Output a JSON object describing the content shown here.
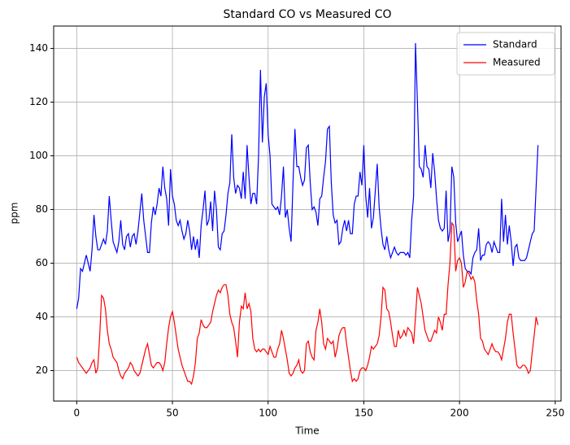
{
  "chart_data": {
    "type": "line",
    "title": "Standard CO vs Measured CO",
    "x_label": "Time",
    "y_label": "ppm",
    "x": [
      0,
      1,
      2,
      3,
      4,
      5,
      6,
      7,
      8,
      9,
      10,
      11,
      12,
      13,
      14,
      15,
      16,
      17,
      18,
      19,
      20,
      21,
      22,
      23,
      24,
      25,
      26,
      27,
      28,
      29,
      30,
      31,
      32,
      33,
      34,
      35,
      36,
      37,
      38,
      39,
      40,
      41,
      42,
      43,
      44,
      45,
      46,
      47,
      48,
      49,
      50,
      51,
      52,
      53,
      54,
      55,
      56,
      57,
      58,
      59,
      60,
      61,
      62,
      63,
      64,
      65,
      66,
      67,
      68,
      69,
      70,
      71,
      72,
      73,
      74,
      75,
      76,
      77,
      78,
      79,
      80,
      81,
      82,
      83,
      84,
      85,
      86,
      87,
      88,
      89,
      90,
      91,
      92,
      93,
      94,
      95,
      96,
      97,
      98,
      99,
      100,
      101,
      102,
      103,
      104,
      105,
      106,
      107,
      108,
      109,
      110,
      111,
      112,
      113,
      114,
      115,
      116,
      117,
      118,
      119,
      120,
      121,
      122,
      123,
      124,
      125,
      126,
      127,
      128,
      129,
      130,
      131,
      132,
      133,
      134,
      135,
      136,
      137,
      138,
      139,
      140,
      141,
      142,
      143,
      144,
      145,
      146,
      147,
      148,
      149,
      150,
      151,
      152,
      153,
      154,
      155,
      156,
      157,
      158,
      159,
      160,
      161,
      162,
      163,
      164,
      165,
      166,
      167,
      168,
      169,
      170,
      171,
      172,
      173,
      174,
      175,
      176,
      177,
      178,
      179,
      180,
      181,
      182,
      183,
      184,
      185,
      186,
      187,
      188,
      189,
      190,
      191,
      192,
      193,
      194,
      195,
      196,
      197,
      198,
      199,
      200,
      201,
      202,
      203,
      204,
      205,
      206,
      207,
      208,
      209,
      210,
      211,
      212,
      213,
      214,
      215,
      216,
      217,
      218,
      219,
      220,
      221,
      222,
      223,
      224,
      225,
      226,
      227,
      228,
      229,
      230,
      231,
      232,
      233,
      234,
      235,
      236,
      237,
      238,
      239,
      240,
      241
    ],
    "series": [
      {
        "name": "Standard",
        "color": "#0000ff",
        "values": [
          43,
          47,
          58,
          57,
          60,
          63,
          60,
          57,
          65,
          78,
          70,
          65,
          65,
          67,
          69,
          67,
          72,
          85,
          76,
          68,
          66,
          64,
          68,
          76,
          67,
          65,
          70,
          71,
          66,
          70,
          71,
          67,
          72,
          79,
          86,
          76,
          70,
          64,
          64,
          75,
          81,
          78,
          82,
          88,
          85,
          96,
          88,
          84,
          74,
          95,
          85,
          82,
          76,
          74,
          76,
          72,
          69,
          71,
          76,
          72,
          65,
          70,
          65,
          69,
          62,
          74,
          80,
          87,
          74,
          76,
          83,
          72,
          87,
          80,
          66,
          65,
          71,
          72,
          78,
          86,
          90,
          108,
          92,
          86,
          89,
          88,
          84,
          94,
          84,
          104,
          92,
          82,
          86,
          86,
          82,
          100,
          132,
          105,
          122,
          127,
          108,
          100,
          82,
          81,
          80,
          81,
          78,
          85,
          96,
          77,
          80,
          73,
          68,
          90,
          110,
          96,
          96,
          92,
          89,
          91,
          103,
          104,
          90,
          80,
          81,
          79,
          74,
          84,
          85,
          92,
          98,
          110,
          111,
          90,
          78,
          75,
          76,
          67,
          68,
          73,
          76,
          72,
          76,
          71,
          71,
          82,
          85,
          85,
          94,
          89,
          104,
          85,
          77,
          88,
          73,
          77,
          87,
          97,
          81,
          73,
          67,
          65,
          70,
          65,
          62,
          64,
          66,
          64,
          63,
          64,
          64,
          64,
          63,
          64,
          62,
          76,
          85,
          142,
          120,
          96,
          95,
          92,
          104,
          96,
          95,
          88,
          101,
          94,
          84,
          76,
          73,
          72,
          73,
          87,
          68,
          72,
          96,
          92,
          75,
          68,
          70,
          72,
          63,
          58,
          57,
          57,
          56,
          62,
          64,
          65,
          73,
          61,
          63,
          63,
          67,
          68,
          67,
          64,
          68,
          66,
          64,
          64,
          84,
          68,
          78,
          67,
          74,
          68,
          59,
          66,
          67,
          62,
          61,
          61,
          61,
          62,
          65,
          68,
          71,
          72,
          88,
          104
        ]
      },
      {
        "name": "Measured",
        "color": "#ff0000",
        "values": [
          25,
          23,
          22,
          21,
          20,
          19,
          20,
          21,
          23,
          24,
          19,
          21,
          33,
          48,
          47,
          43,
          35,
          30,
          28,
          25,
          24,
          23,
          20,
          18,
          17,
          19,
          20,
          21,
          23,
          22,
          20,
          19,
          18,
          19,
          22,
          25,
          28,
          30,
          26,
          22,
          21,
          22,
          23,
          23,
          22,
          20,
          23,
          30,
          36,
          40,
          42,
          38,
          33,
          28,
          25,
          22,
          20,
          18,
          16,
          16,
          15,
          18,
          23,
          32,
          34,
          39,
          37,
          36,
          36,
          37,
          38,
          42,
          45,
          48,
          50,
          49,
          51,
          52,
          52,
          48,
          41,
          38,
          36,
          31,
          25,
          38,
          44,
          43,
          49,
          43,
          45,
          42,
          32,
          28,
          27,
          28,
          27,
          28,
          28,
          27,
          26,
          29,
          27,
          25,
          25,
          28,
          30,
          35,
          32,
          28,
          24,
          19,
          18,
          19,
          21,
          22,
          24,
          20,
          19,
          20,
          30,
          31,
          27,
          25,
          24,
          35,
          38,
          43,
          38,
          30,
          28,
          32,
          31,
          30,
          31,
          25,
          28,
          33,
          35,
          36,
          36,
          30,
          25,
          20,
          16,
          17,
          16,
          17,
          20,
          21,
          21,
          20,
          22,
          25,
          29,
          28,
          29,
          30,
          33,
          40,
          51,
          50,
          43,
          42,
          38,
          33,
          29,
          29,
          35,
          32,
          33,
          35,
          33,
          36,
          35,
          34,
          30,
          40,
          51,
          48,
          45,
          40,
          35,
          33,
          31,
          31,
          33,
          35,
          34,
          40,
          38,
          35,
          41,
          41,
          52,
          60,
          75,
          74,
          57,
          61,
          62,
          60,
          51,
          53,
          57,
          56,
          54,
          55,
          53,
          46,
          41,
          32,
          31,
          28,
          27,
          26,
          28,
          30,
          28,
          27,
          27,
          26,
          24,
          28,
          32,
          38,
          41,
          41,
          34,
          28,
          22,
          21,
          21,
          22,
          22,
          21,
          19,
          20,
          27,
          33,
          40,
          37
        ]
      }
    ],
    "xlim": [
      -12.05,
      253.05
    ],
    "ylim": [
      8.65,
      148.35
    ],
    "xticks": [
      0,
      50,
      100,
      150,
      200,
      250
    ],
    "yticks": [
      20,
      40,
      60,
      80,
      100,
      120,
      140
    ],
    "grid": true,
    "legend": "upper right"
  }
}
